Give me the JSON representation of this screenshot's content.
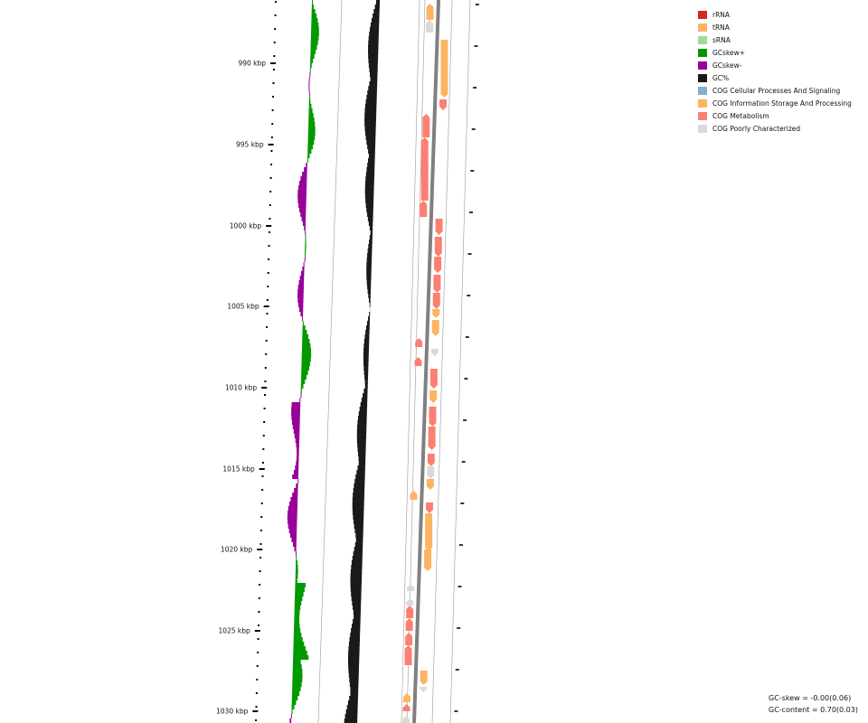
{
  "map": {
    "tick_labels": [
      "990 kbp",
      "995 kbp",
      "1000 kbp",
      "1005 kbp",
      "1010 kbp",
      "1015 kbp",
      "1020 kbp",
      "1025 kbp",
      "1030 kbp"
    ]
  },
  "legend": [
    {
      "label": "rRNA",
      "color": "#d62728"
    },
    {
      "label": "tRNA",
      "color": "#fdb462"
    },
    {
      "label": "sRNA",
      "color": "#a1d99b"
    },
    {
      "label": "GCskew+",
      "color": "#009900"
    },
    {
      "label": "GCskew-",
      "color": "#990099"
    },
    {
      "label": "GC%",
      "color": "#1a1a1a"
    },
    {
      "label": "COG Cellular Processes And Signaling",
      "color": "#80b1d3"
    },
    {
      "label": "COG Information Storage And Processing",
      "color": "#fdb462"
    },
    {
      "label": "COG Metabolism",
      "color": "#fb8072"
    },
    {
      "label": "COG Poorly Characterized",
      "color": "#d9d9d9"
    }
  ],
  "stats": {
    "gc_skew": "GC-skew = -0.00(0.06)",
    "gc_content": "GC-content = 0.70(0.03)"
  }
}
